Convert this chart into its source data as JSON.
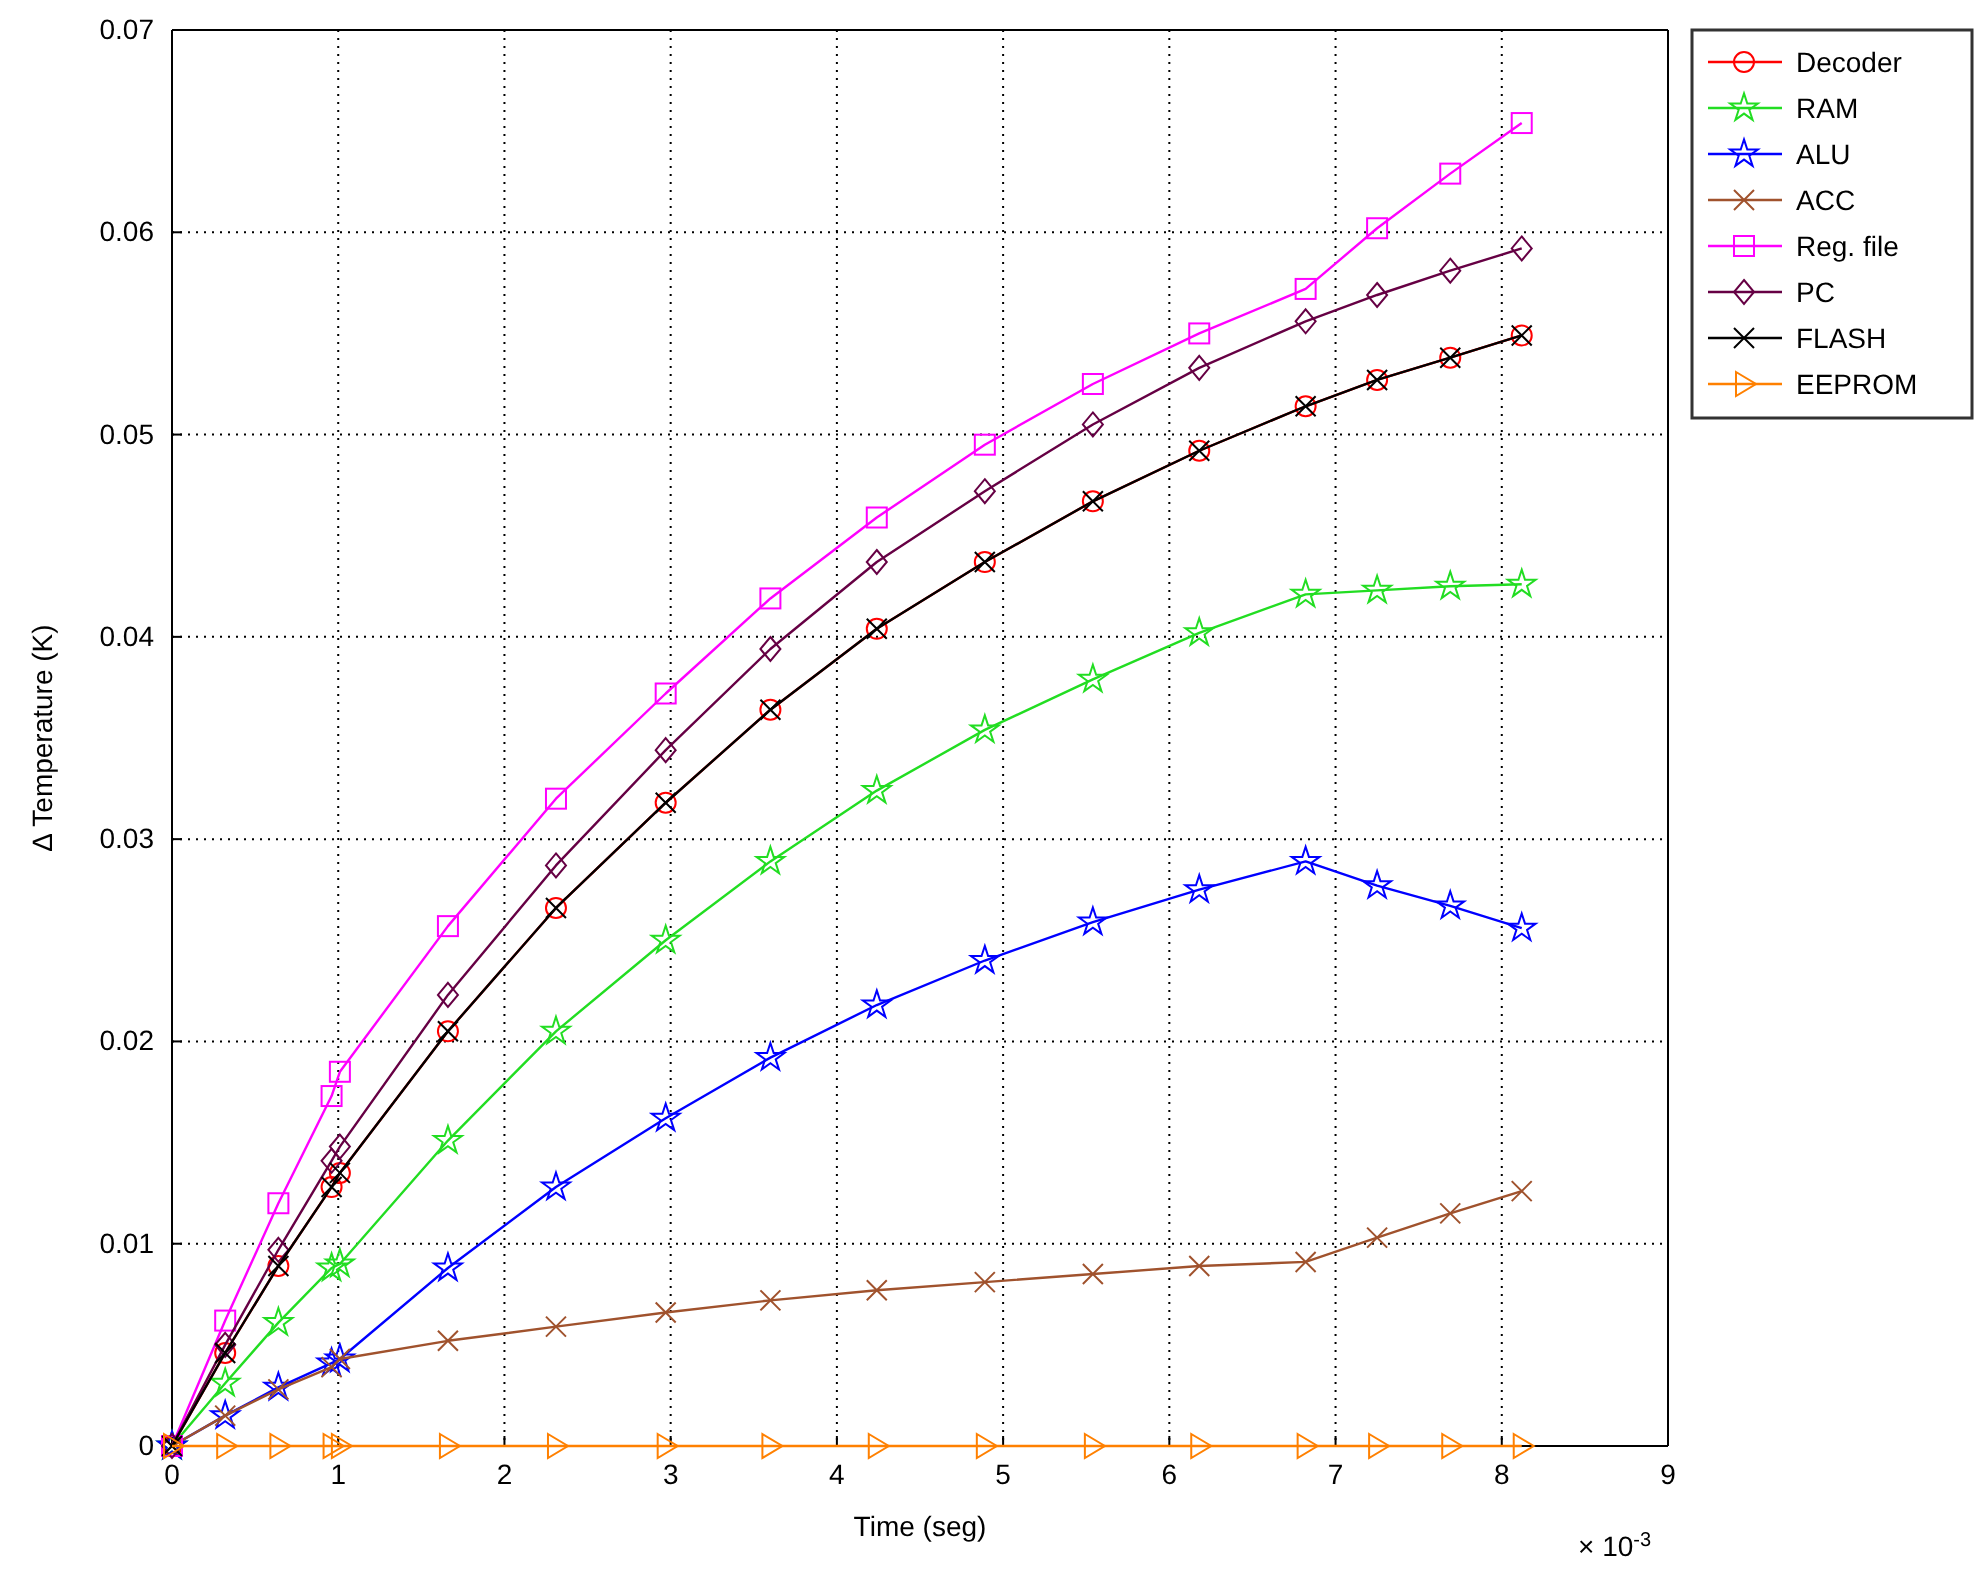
{
  "chart_data": {
    "type": "line",
    "xlabel": "Time (seg)",
    "ylabel": "Δ Temperature (K)",
    "annotations": [
      "× 10$^{-3}$"
    ],
    "x": [
      0,
      0.32,
      0.64,
      0.96,
      1.01,
      1.66,
      2.31,
      2.97,
      3.6,
      4.24,
      4.89,
      5.54,
      6.18,
      6.82,
      7.25,
      7.69,
      8.12
    ],
    "xlim": [
      0,
      9
    ],
    "xticks": [
      0,
      1,
      2,
      3,
      4,
      5,
      6,
      7,
      8,
      9
    ],
    "ylim": [
      0,
      0.07
    ],
    "yticks": [
      0,
      0.01,
      0.02,
      0.03,
      0.04,
      0.05,
      0.06,
      0.07
    ],
    "grid": true,
    "legend": "top right",
    "line_style": "solid",
    "series": [
      {
        "name": "Decoder",
        "color": "#ff0000",
        "marker": "circle",
        "values": [
          0,
          0.0046,
          0.0089,
          0.0128,
          0.0135,
          0.0205,
          0.0266,
          0.0318,
          0.0364,
          0.0404,
          0.0437,
          0.0467,
          0.0492,
          0.0514,
          0.0527,
          0.0538,
          0.0549
        ]
      },
      {
        "name": "RAM",
        "color": "#22dd22",
        "marker": "star",
        "values": [
          0,
          0.0031,
          0.0061,
          0.0088,
          0.009,
          0.0151,
          0.0205,
          0.025,
          0.0289,
          0.0324,
          0.0354,
          0.0379,
          0.0402,
          0.0421,
          0.0423,
          0.0425,
          0.0426
        ]
      },
      {
        "name": "ALU",
        "color": "#0000ff",
        "marker": "star",
        "values": [
          0,
          0.0015,
          0.0029,
          0.0041,
          0.0043,
          0.0088,
          0.0128,
          0.0162,
          0.0192,
          0.0218,
          0.024,
          0.0259,
          0.0275,
          0.0289,
          0.0277,
          0.0267,
          0.0256
        ]
      },
      {
        "name": "ACC",
        "color": "#a0522d",
        "marker": "cross",
        "values": [
          0,
          0.0015,
          0.0028,
          0.0039,
          0.0043,
          0.0052,
          0.0059,
          0.0066,
          0.0072,
          0.0077,
          0.0081,
          0.0085,
          0.0089,
          0.0091,
          0.0103,
          0.0115,
          0.0126
        ]
      },
      {
        "name": "Reg. file",
        "color": "#ff00ff",
        "marker": "square",
        "values": [
          0,
          0.0062,
          0.012,
          0.0173,
          0.0185,
          0.0257,
          0.032,
          0.0372,
          0.0419,
          0.0459,
          0.0495,
          0.0525,
          0.055,
          0.0572,
          0.0602,
          0.0629,
          0.0654
        ]
      },
      {
        "name": "PC",
        "color": "#660044",
        "marker": "diamond",
        "values": [
          0,
          0.005,
          0.0097,
          0.0141,
          0.0148,
          0.0223,
          0.0287,
          0.0344,
          0.0394,
          0.0437,
          0.0472,
          0.0505,
          0.0533,
          0.0556,
          0.0569,
          0.0581,
          0.0592
        ]
      },
      {
        "name": "FLASH",
        "color": "#000000",
        "marker": "cross",
        "values": [
          0,
          0.0046,
          0.0089,
          0.0128,
          0.0135,
          0.0205,
          0.0266,
          0.0318,
          0.0364,
          0.0404,
          0.0437,
          0.0467,
          0.0492,
          0.0514,
          0.0527,
          0.0538,
          0.0549
        ]
      },
      {
        "name": "EEPROM",
        "color": "#ff8000",
        "marker": "triangle",
        "values": [
          0,
          0,
          0,
          0,
          0,
          0,
          0,
          0,
          0,
          0,
          0,
          0,
          0,
          0,
          0,
          0,
          0
        ]
      }
    ]
  }
}
